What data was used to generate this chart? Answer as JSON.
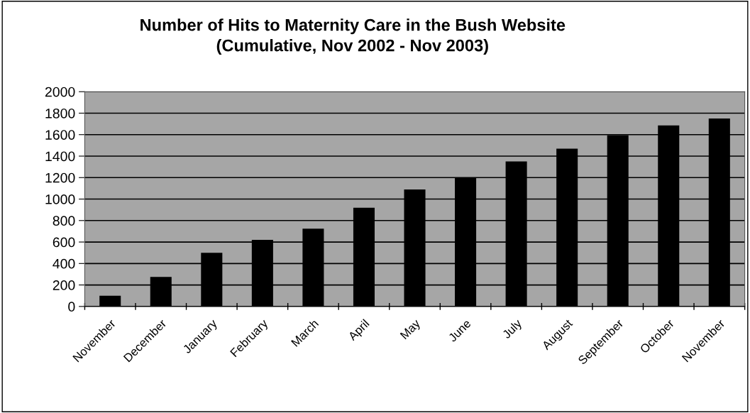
{
  "chart_data": {
    "type": "bar",
    "title": "Number of Hits to Maternity Care in the Bush Website\n(Cumulative, Nov 2002 - Nov 2003)",
    "categories": [
      "November",
      "December",
      "January",
      "February",
      "March",
      "April",
      "May",
      "June",
      "July",
      "August",
      "September",
      "October",
      "November"
    ],
    "values": [
      100,
      275,
      500,
      620,
      725,
      920,
      1090,
      1195,
      1350,
      1470,
      1595,
      1685,
      1750
    ],
    "color": "#000000",
    "ylim": [
      0,
      2000
    ],
    "yticks": [
      0,
      200,
      400,
      600,
      800,
      1000,
      1200,
      1400,
      1600,
      1800,
      2000
    ],
    "grid": "y"
  }
}
